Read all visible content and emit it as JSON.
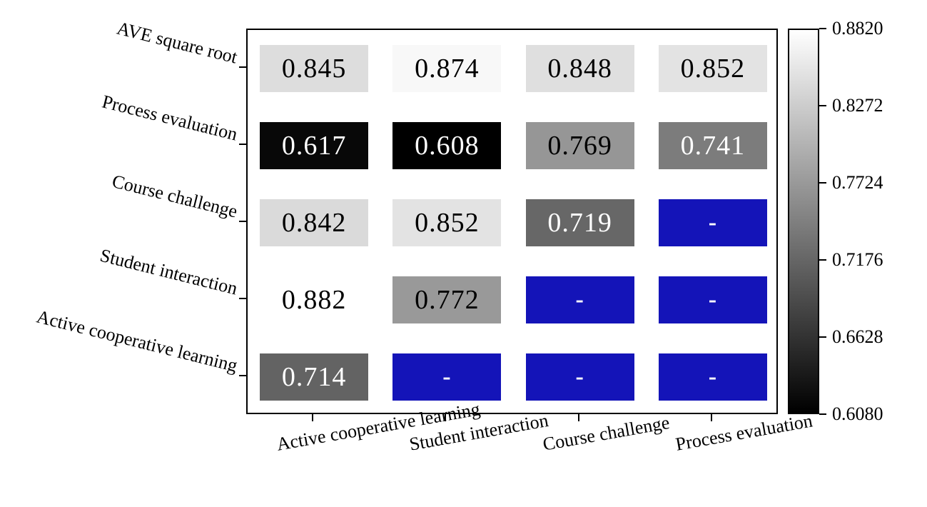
{
  "figure": {
    "background": "#ffffff"
  },
  "chart_data": {
    "type": "heatmap",
    "title": "",
    "rows": [
      "AVE square root",
      "Process evaluation",
      "Course challenge",
      "Student interaction",
      "Active cooperative learning"
    ],
    "columns": [
      "Active cooperative learning",
      "Student interaction",
      "Course challenge",
      "Process evaluation"
    ],
    "values": [
      [
        0.845,
        0.874,
        0.848,
        0.852
      ],
      [
        0.617,
        0.608,
        0.769,
        0.741
      ],
      [
        0.842,
        0.852,
        0.719,
        null
      ],
      [
        0.882,
        0.772,
        null,
        null
      ],
      [
        0.714,
        null,
        null,
        null
      ]
    ],
    "missing_label": "-",
    "value_decimals": 3,
    "colormap": {
      "type": "grayscale",
      "vmin": 0.608,
      "vmax": 0.882,
      "low_color": "#000000",
      "high_color": "#ffffff",
      "missing_color": "#1414b8",
      "text_light": "#ffffff",
      "text_dark": "#000000"
    },
    "colorbar_ticks": [
      "0.8820",
      "0.8272",
      "0.7724",
      "0.7176",
      "0.6628",
      "0.6080"
    ],
    "legend_position": "right",
    "grid": false
  }
}
